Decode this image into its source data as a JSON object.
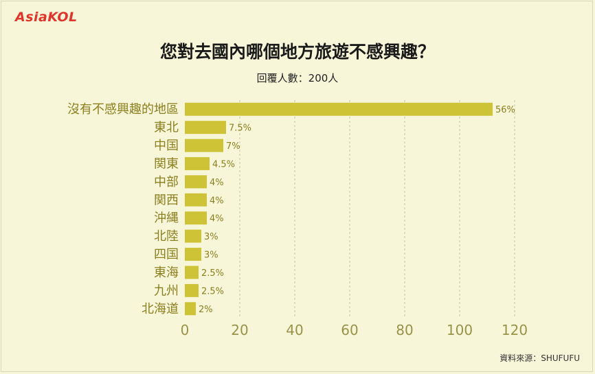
{
  "logo": {
    "text": "AsiaKOL"
  },
  "header": {
    "title": "您對去國內哪個地方旅遊不感興趣？",
    "subtitle": "回覆人數：200人"
  },
  "footer": {
    "source": "資料來源：SHUFUFU"
  },
  "colors": {
    "bar": "#cec337",
    "label": "#8b7f1e",
    "logo": "#e0352b",
    "background": "#f7f6d9"
  },
  "chart_data": {
    "type": "bar",
    "orientation": "horizontal",
    "title": "您對去國內哪個地方旅遊不感興趣？",
    "subtitle": "回覆人數：200人",
    "categories": [
      "沒有不感興趣的地區",
      "東北",
      "中国",
      "関東",
      "中部",
      "関西",
      "沖縄",
      "北陸",
      "四国",
      "東海",
      "九州",
      "北海道"
    ],
    "values": [
      112,
      15,
      14,
      9,
      8,
      8,
      8,
      6,
      6,
      5,
      5,
      4
    ],
    "data_labels": [
      "56%",
      "7.5%",
      "7%",
      "4.5%",
      "4%",
      "4%",
      "4%",
      "3%",
      "3%",
      "2.5%",
      "2.5%",
      "2%"
    ],
    "xlim": [
      0,
      120
    ],
    "xticks": [
      0,
      20,
      40,
      60,
      80,
      100,
      120
    ],
    "grid": true,
    "xlabel": "",
    "ylabel": ""
  }
}
